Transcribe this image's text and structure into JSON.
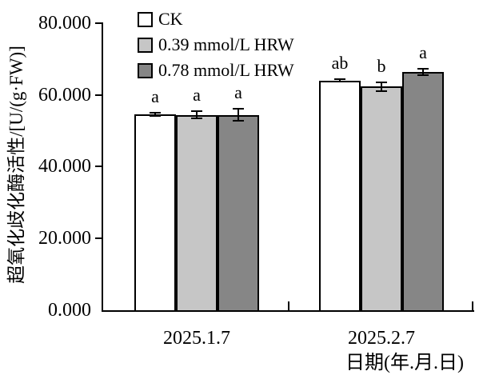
{
  "figure": {
    "background": "#ffffff",
    "axis_color": "#000000",
    "error_bar_color": "#000000"
  },
  "chart_data": {
    "type": "bar",
    "title": "",
    "xlabel": "日期(年.月.日)",
    "ylabel": "超氧化歧化酶活性/[U/(g·FW)]",
    "ylim": [
      0,
      80
    ],
    "ytick_interval": 20,
    "ytick_labels": [
      "0.000",
      "20.000",
      "40.000",
      "60.000",
      "80.000"
    ],
    "categories": [
      "2025.1.7",
      "2025.2.7"
    ],
    "series": [
      {
        "name": "CK",
        "fill": "#ffffff",
        "values": [
          54.5,
          64.0
        ],
        "errors": [
          0.4,
          0.4
        ],
        "letters": [
          "a",
          "ab"
        ]
      },
      {
        "name": "0.39 mmol/L HRW",
        "fill": "#c6c6c6",
        "values": [
          54.4,
          62.3
        ],
        "errors": [
          1.0,
          1.2
        ],
        "letters": [
          "a",
          "b"
        ]
      },
      {
        "name": "0.78 mmol/L HRW",
        "fill": "#868686",
        "values": [
          54.4,
          66.3
        ],
        "errors": [
          1.7,
          0.9
        ],
        "letters": [
          "a",
          "a"
        ]
      }
    ],
    "legend_position": "top-left-inside",
    "grid": false
  }
}
